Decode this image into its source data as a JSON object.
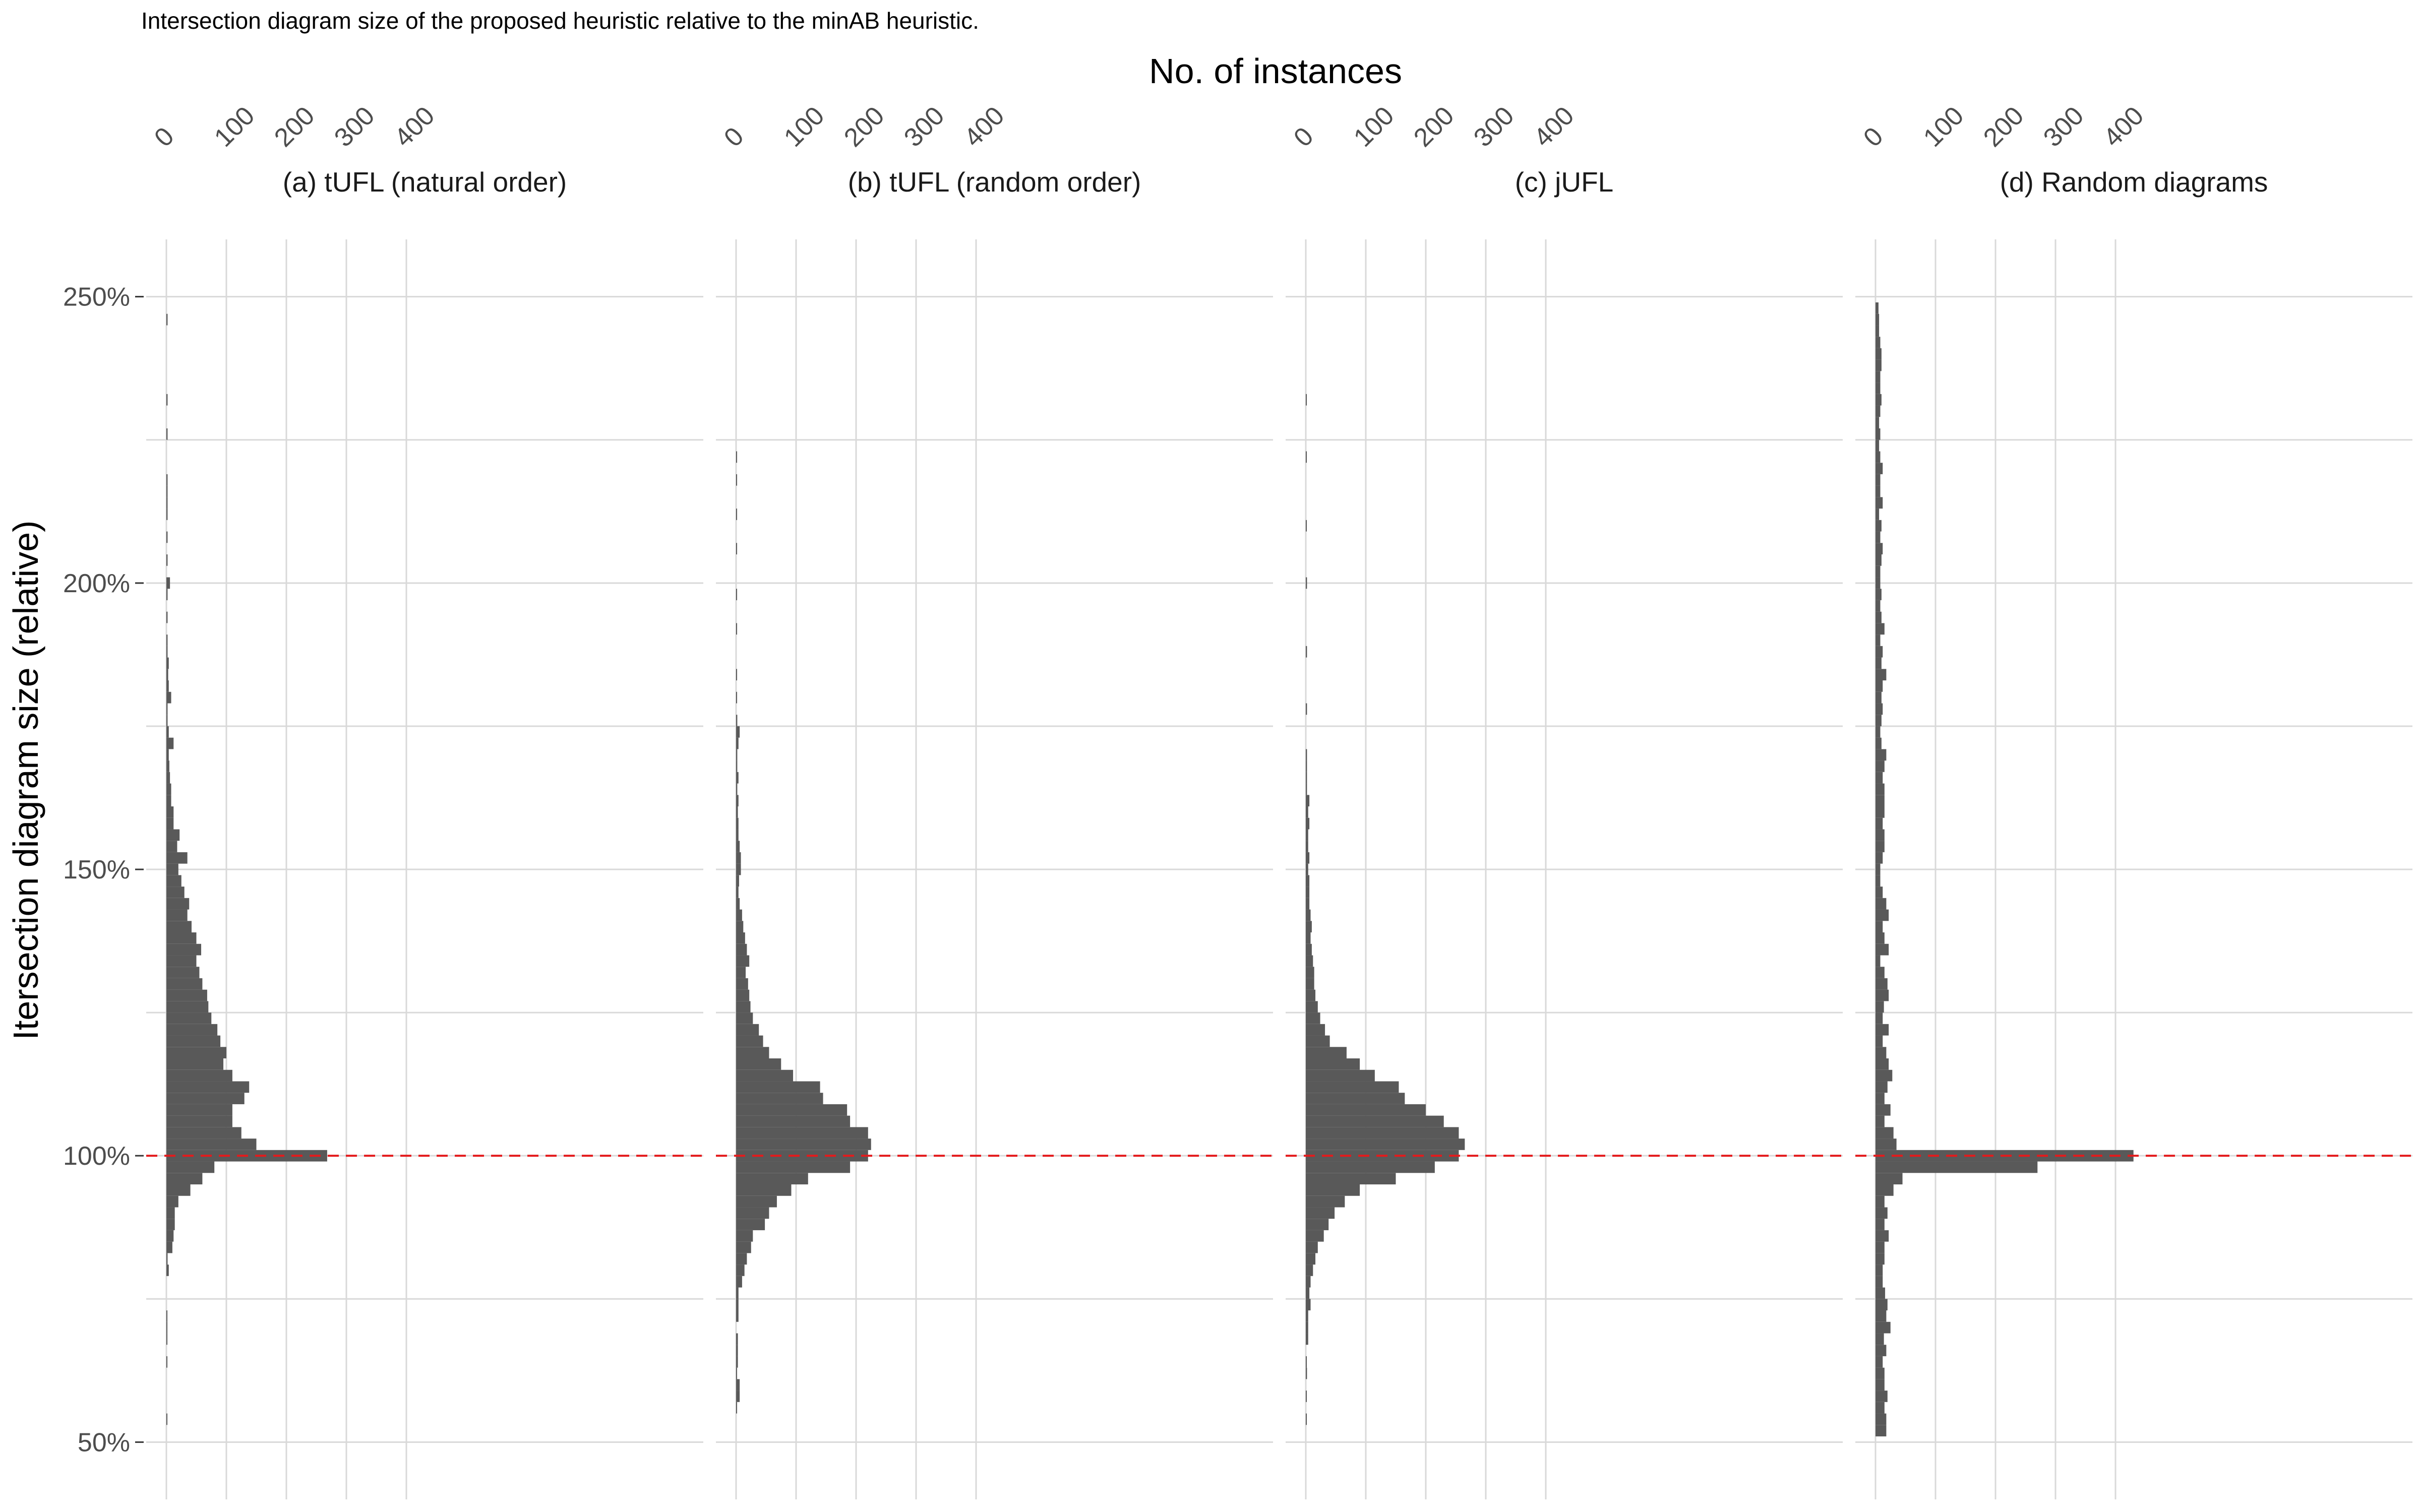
{
  "caption": "Intersection diagram size of the proposed heuristic relative to the minAB heuristic.",
  "chart_data": {
    "type": "histogram",
    "orientation": "horizontal",
    "xlabel": "No. of instances",
    "ylabel": "Itersection diagram size (relative)",
    "x_axis_position": "top",
    "xlim": [
      0,
      430
    ],
    "x_ticks": [
      0,
      100,
      200,
      300,
      400
    ],
    "x_tick_labels": [
      "0",
      "100",
      "200",
      "300",
      "400"
    ],
    "ylim": [
      40,
      260
    ],
    "y_ticks": [
      50,
      100,
      150,
      200,
      250
    ],
    "y_tick_labels": [
      "50%",
      "100%",
      "150%",
      "200%",
      "250%"
    ],
    "bin_width": 2,
    "grid": true,
    "bar_color": "#595959",
    "reference_line": {
      "y": 100,
      "style": "dashed",
      "color": "#e31a1c"
    },
    "panels": [
      {
        "title": "(a) tUFL (natural order)",
        "bins": [
          [
            54,
            1
          ],
          [
            64,
            1
          ],
          [
            68,
            1
          ],
          [
            70,
            1
          ],
          [
            72,
            1
          ],
          [
            80,
            4
          ],
          [
            82,
            2
          ],
          [
            84,
            10
          ],
          [
            86,
            12
          ],
          [
            88,
            14
          ],
          [
            90,
            14
          ],
          [
            92,
            20
          ],
          [
            94,
            40
          ],
          [
            96,
            60
          ],
          [
            98,
            80
          ],
          [
            100,
            268
          ],
          [
            102,
            150
          ],
          [
            104,
            125
          ],
          [
            106,
            110
          ],
          [
            108,
            110
          ],
          [
            110,
            130
          ],
          [
            112,
            138
          ],
          [
            114,
            110
          ],
          [
            116,
            95
          ],
          [
            118,
            100
          ],
          [
            120,
            90
          ],
          [
            122,
            85
          ],
          [
            124,
            75
          ],
          [
            126,
            70
          ],
          [
            128,
            68
          ],
          [
            130,
            60
          ],
          [
            132,
            55
          ],
          [
            134,
            50
          ],
          [
            136,
            58
          ],
          [
            138,
            50
          ],
          [
            140,
            42
          ],
          [
            142,
            35
          ],
          [
            144,
            38
          ],
          [
            146,
            30
          ],
          [
            148,
            25
          ],
          [
            150,
            20
          ],
          [
            152,
            35
          ],
          [
            154,
            18
          ],
          [
            156,
            22
          ],
          [
            158,
            12
          ],
          [
            160,
            12
          ],
          [
            162,
            8
          ],
          [
            164,
            8
          ],
          [
            166,
            6
          ],
          [
            168,
            5
          ],
          [
            170,
            4
          ],
          [
            172,
            12
          ],
          [
            174,
            4
          ],
          [
            176,
            2
          ],
          [
            178,
            2
          ],
          [
            180,
            8
          ],
          [
            182,
            4
          ],
          [
            184,
            3
          ],
          [
            186,
            4
          ],
          [
            188,
            2
          ],
          [
            190,
            2
          ],
          [
            194,
            2
          ],
          [
            198,
            2
          ],
          [
            200,
            6
          ],
          [
            204,
            2
          ],
          [
            208,
            2
          ],
          [
            212,
            2
          ],
          [
            214,
            2
          ],
          [
            216,
            2
          ],
          [
            218,
            2
          ],
          [
            226,
            2
          ],
          [
            232,
            2
          ],
          [
            246,
            2
          ]
        ]
      },
      {
        "title": "(b) tUFL (random order)",
        "bins": [
          [
            56,
            1
          ],
          [
            58,
            6
          ],
          [
            60,
            6
          ],
          [
            62,
            1
          ],
          [
            64,
            3
          ],
          [
            66,
            3
          ],
          [
            68,
            3
          ],
          [
            72,
            4
          ],
          [
            74,
            4
          ],
          [
            76,
            4
          ],
          [
            78,
            10
          ],
          [
            80,
            14
          ],
          [
            82,
            18
          ],
          [
            84,
            25
          ],
          [
            86,
            28
          ],
          [
            88,
            48
          ],
          [
            90,
            55
          ],
          [
            92,
            68
          ],
          [
            94,
            92
          ],
          [
            96,
            120
          ],
          [
            98,
            190
          ],
          [
            100,
            220
          ],
          [
            102,
            225
          ],
          [
            104,
            220
          ],
          [
            106,
            190
          ],
          [
            108,
            185
          ],
          [
            110,
            145
          ],
          [
            112,
            140
          ],
          [
            114,
            95
          ],
          [
            116,
            75
          ],
          [
            118,
            55
          ],
          [
            120,
            45
          ],
          [
            122,
            38
          ],
          [
            124,
            28
          ],
          [
            126,
            24
          ],
          [
            128,
            22
          ],
          [
            130,
            20
          ],
          [
            132,
            16
          ],
          [
            134,
            22
          ],
          [
            136,
            18
          ],
          [
            138,
            15
          ],
          [
            140,
            12
          ],
          [
            142,
            10
          ],
          [
            144,
            6
          ],
          [
            146,
            4
          ],
          [
            148,
            5
          ],
          [
            150,
            8
          ],
          [
            152,
            8
          ],
          [
            154,
            6
          ],
          [
            156,
            4
          ],
          [
            158,
            4
          ],
          [
            160,
            3
          ],
          [
            162,
            4
          ],
          [
            164,
            2
          ],
          [
            166,
            4
          ],
          [
            168,
            2
          ],
          [
            170,
            2
          ],
          [
            172,
            4
          ],
          [
            174,
            6
          ],
          [
            176,
            2
          ],
          [
            180,
            1
          ],
          [
            184,
            1
          ],
          [
            192,
            1
          ],
          [
            198,
            1
          ],
          [
            206,
            1
          ],
          [
            212,
            1
          ],
          [
            218,
            1
          ],
          [
            222,
            1
          ]
        ]
      },
      {
        "title": "(c) jUFL",
        "bins": [
          [
            54,
            1
          ],
          [
            58,
            1
          ],
          [
            62,
            2
          ],
          [
            64,
            1
          ],
          [
            68,
            4
          ],
          [
            70,
            4
          ],
          [
            72,
            4
          ],
          [
            74,
            8
          ],
          [
            76,
            6
          ],
          [
            78,
            8
          ],
          [
            80,
            12
          ],
          [
            82,
            16
          ],
          [
            84,
            20
          ],
          [
            86,
            30
          ],
          [
            88,
            38
          ],
          [
            90,
            48
          ],
          [
            92,
            65
          ],
          [
            94,
            90
          ],
          [
            96,
            150
          ],
          [
            98,
            215
          ],
          [
            100,
            255
          ],
          [
            102,
            265
          ],
          [
            104,
            255
          ],
          [
            106,
            230
          ],
          [
            108,
            200
          ],
          [
            110,
            165
          ],
          [
            112,
            155
          ],
          [
            114,
            115
          ],
          [
            116,
            90
          ],
          [
            118,
            68
          ],
          [
            120,
            40
          ],
          [
            122,
            32
          ],
          [
            124,
            24
          ],
          [
            126,
            20
          ],
          [
            128,
            16
          ],
          [
            130,
            14
          ],
          [
            132,
            14
          ],
          [
            134,
            12
          ],
          [
            136,
            10
          ],
          [
            138,
            8
          ],
          [
            140,
            10
          ],
          [
            142,
            8
          ],
          [
            144,
            6
          ],
          [
            146,
            6
          ],
          [
            148,
            6
          ],
          [
            150,
            4
          ],
          [
            152,
            6
          ],
          [
            154,
            4
          ],
          [
            156,
            4
          ],
          [
            158,
            6
          ],
          [
            160,
            4
          ],
          [
            162,
            6
          ],
          [
            164,
            2
          ],
          [
            166,
            2
          ],
          [
            168,
            2
          ],
          [
            170,
            2
          ],
          [
            178,
            2
          ],
          [
            188,
            2
          ],
          [
            200,
            2
          ],
          [
            210,
            1
          ],
          [
            222,
            1
          ],
          [
            232,
            1
          ]
        ]
      },
      {
        "title": "(d) Random diagrams",
        "bins": [
          [
            52,
            18
          ],
          [
            54,
            18
          ],
          [
            56,
            15
          ],
          [
            58,
            20
          ],
          [
            60,
            15
          ],
          [
            62,
            15
          ],
          [
            64,
            12
          ],
          [
            66,
            18
          ],
          [
            68,
            14
          ],
          [
            70,
            25
          ],
          [
            72,
            18
          ],
          [
            74,
            20
          ],
          [
            76,
            16
          ],
          [
            78,
            12
          ],
          [
            80,
            12
          ],
          [
            82,
            15
          ],
          [
            84,
            15
          ],
          [
            86,
            22
          ],
          [
            88,
            15
          ],
          [
            90,
            20
          ],
          [
            92,
            15
          ],
          [
            94,
            30
          ],
          [
            96,
            45
          ],
          [
            98,
            270
          ],
          [
            100,
            430
          ],
          [
            102,
            35
          ],
          [
            104,
            30
          ],
          [
            106,
            15
          ],
          [
            108,
            25
          ],
          [
            110,
            15
          ],
          [
            112,
            20
          ],
          [
            114,
            28
          ],
          [
            116,
            22
          ],
          [
            118,
            18
          ],
          [
            120,
            12
          ],
          [
            122,
            22
          ],
          [
            124,
            12
          ],
          [
            126,
            14
          ],
          [
            128,
            22
          ],
          [
            130,
            20
          ],
          [
            132,
            15
          ],
          [
            134,
            8
          ],
          [
            136,
            22
          ],
          [
            138,
            15
          ],
          [
            140,
            12
          ],
          [
            142,
            22
          ],
          [
            144,
            18
          ],
          [
            146,
            12
          ],
          [
            148,
            8
          ],
          [
            150,
            8
          ],
          [
            152,
            12
          ],
          [
            154,
            15
          ],
          [
            156,
            15
          ],
          [
            158,
            12
          ],
          [
            160,
            15
          ],
          [
            162,
            15
          ],
          [
            164,
            15
          ],
          [
            166,
            12
          ],
          [
            168,
            15
          ],
          [
            170,
            18
          ],
          [
            172,
            10
          ],
          [
            174,
            8
          ],
          [
            176,
            10
          ],
          [
            178,
            12
          ],
          [
            180,
            10
          ],
          [
            182,
            12
          ],
          [
            184,
            18
          ],
          [
            186,
            10
          ],
          [
            188,
            12
          ],
          [
            190,
            8
          ],
          [
            192,
            15
          ],
          [
            194,
            10
          ],
          [
            196,
            8
          ],
          [
            198,
            10
          ],
          [
            200,
            8
          ],
          [
            202,
            8
          ],
          [
            204,
            10
          ],
          [
            206,
            12
          ],
          [
            208,
            8
          ],
          [
            210,
            10
          ],
          [
            212,
            6
          ],
          [
            214,
            12
          ],
          [
            216,
            8
          ],
          [
            218,
            8
          ],
          [
            220,
            12
          ],
          [
            222,
            8
          ],
          [
            224,
            6
          ],
          [
            226,
            8
          ],
          [
            228,
            6
          ],
          [
            230,
            8
          ],
          [
            232,
            10
          ],
          [
            234,
            8
          ],
          [
            236,
            8
          ],
          [
            238,
            10
          ],
          [
            240,
            10
          ],
          [
            242,
            8
          ],
          [
            244,
            6
          ],
          [
            246,
            6
          ],
          [
            248,
            5
          ]
        ]
      }
    ]
  }
}
